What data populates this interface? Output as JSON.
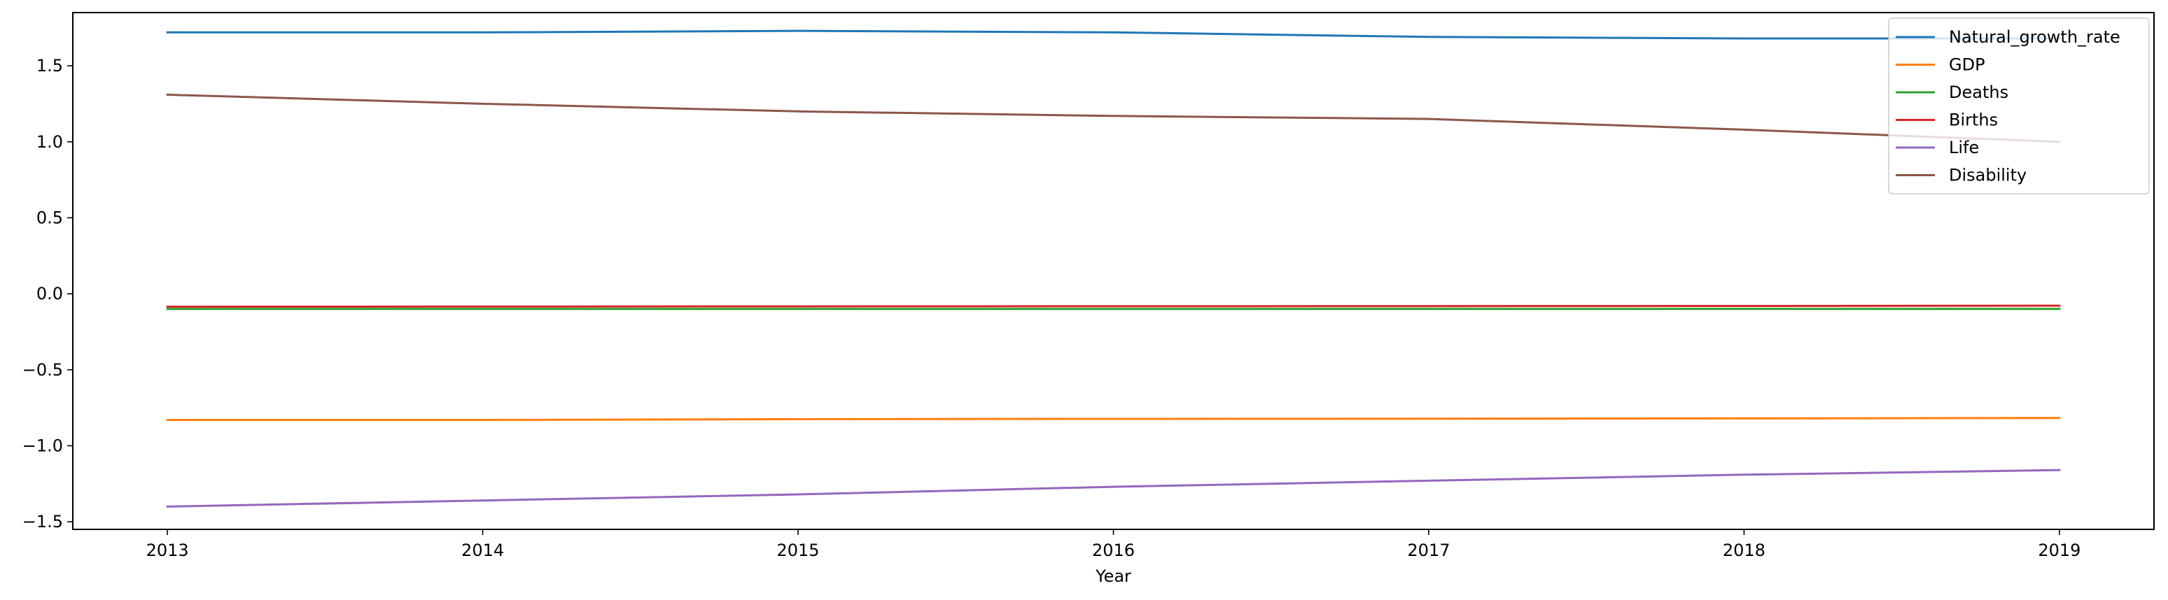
{
  "chart_data": {
    "type": "line",
    "title": "",
    "xlabel": "Year",
    "ylabel": "",
    "x": [
      2013,
      2014,
      2015,
      2016,
      2017,
      2018,
      2019
    ],
    "xlim": [
      2012.7,
      2019.3
    ],
    "ylim": [
      -1.55,
      1.85
    ],
    "xticks": [
      "2013",
      "2014",
      "2015",
      "2016",
      "2017",
      "2018",
      "2019"
    ],
    "yticks": [
      -1.5,
      -1.0,
      -0.5,
      0.0,
      0.5,
      1.0,
      1.5
    ],
    "ytick_labels": [
      "−1.5",
      "−1.0",
      "−0.5",
      "0.0",
      "0.5",
      "1.0",
      "1.5"
    ],
    "grid": false,
    "legend_position": "top-right",
    "series": [
      {
        "name": "Natural_growth_rate",
        "color": "#1f77b4",
        "values": [
          1.72,
          1.72,
          1.73,
          1.72,
          1.69,
          1.68,
          1.68
        ]
      },
      {
        "name": "GDP",
        "color": "#ff7f0e",
        "values": [
          -0.83,
          -0.83,
          -0.825,
          -0.823,
          -0.822,
          -0.82,
          -0.817
        ]
      },
      {
        "name": "Deaths",
        "color": "#2ca02c",
        "values": [
          -0.1,
          -0.1,
          -0.1,
          -0.1,
          -0.1,
          -0.1,
          -0.1
        ]
      },
      {
        "name": "Births",
        "color": "#d62728",
        "values": [
          -0.085,
          -0.084,
          -0.083,
          -0.082,
          -0.081,
          -0.08,
          -0.078
        ]
      },
      {
        "name": "Life",
        "color": "#9467bd",
        "values": [
          -1.4,
          -1.36,
          -1.32,
          -1.27,
          -1.23,
          -1.19,
          -1.16
        ]
      },
      {
        "name": "Disability",
        "color": "#8c564b",
        "values": [
          1.31,
          1.25,
          1.2,
          1.17,
          1.15,
          1.08,
          1.0
        ]
      }
    ]
  }
}
